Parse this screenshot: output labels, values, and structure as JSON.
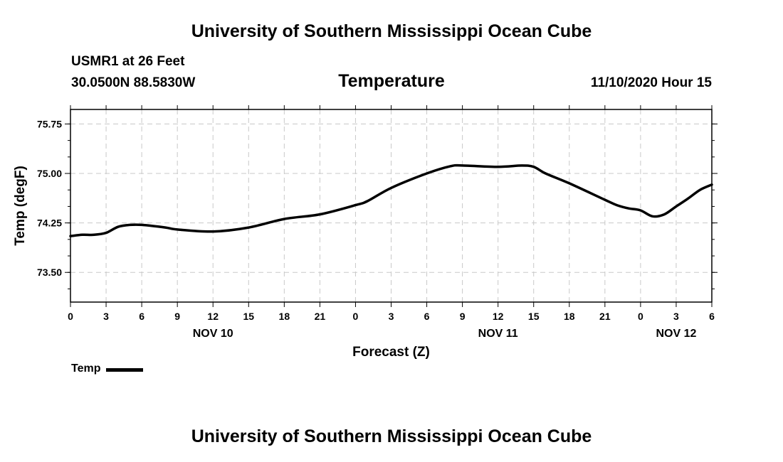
{
  "header": {
    "title": "University of Southern Mississippi Ocean Cube",
    "station": "USMR1 at 26 Feet",
    "coords": "30.0500N 88.5830W",
    "variable": "Temperature",
    "datetime": "11/10/2020 Hour 15"
  },
  "footer": {
    "title": "University of Southern Mississippi Ocean Cube"
  },
  "legend": {
    "label": "Temp",
    "color": "#000000"
  },
  "chart_data": {
    "type": "line",
    "title": "Temperature",
    "xlabel": "Forecast (Z)",
    "ylabel": "Temp (degF)",
    "xlim": [
      0,
      54
    ],
    "ylim": [
      73.05,
      75.97
    ],
    "grid": true,
    "x_ticks": [
      0,
      3,
      6,
      9,
      12,
      15,
      18,
      21,
      24,
      27,
      30,
      33,
      36,
      39,
      42,
      45,
      48,
      51,
      54
    ],
    "x_tick_labels": [
      "0",
      "3",
      "6",
      "9",
      "12",
      "15",
      "18",
      "21",
      "0",
      "3",
      "6",
      "9",
      "12",
      "15",
      "18",
      "21",
      "0",
      "3",
      "6"
    ],
    "y_ticks": [
      73.5,
      74.25,
      75.0,
      75.75
    ],
    "y_tick_labels": [
      "73.50",
      "74.25",
      "75.00",
      "75.75"
    ],
    "date_labels": [
      {
        "x": 12,
        "label": "NOV 10"
      },
      {
        "x": 36,
        "label": "NOV 11"
      },
      {
        "x": 51,
        "label": "NOV 12"
      }
    ],
    "series": [
      {
        "name": "Temp",
        "color": "#000000",
        "x": [
          0,
          1,
          2,
          3,
          4,
          5,
          6,
          8,
          9,
          12,
          15,
          18,
          21,
          24,
          25,
          27,
          30,
          32,
          33,
          36,
          38,
          39,
          40,
          42,
          45,
          46,
          47,
          48,
          49,
          50,
          51,
          52,
          53,
          54
        ],
        "y": [
          74.05,
          74.07,
          74.07,
          74.1,
          74.19,
          74.22,
          74.22,
          74.18,
          74.15,
          74.12,
          74.18,
          74.31,
          74.38,
          74.52,
          74.58,
          74.78,
          75.0,
          75.11,
          75.12,
          75.1,
          75.12,
          75.1,
          75.0,
          74.85,
          74.6,
          74.52,
          74.47,
          74.44,
          74.35,
          74.38,
          74.5,
          74.62,
          74.75,
          74.83
        ]
      }
    ]
  }
}
